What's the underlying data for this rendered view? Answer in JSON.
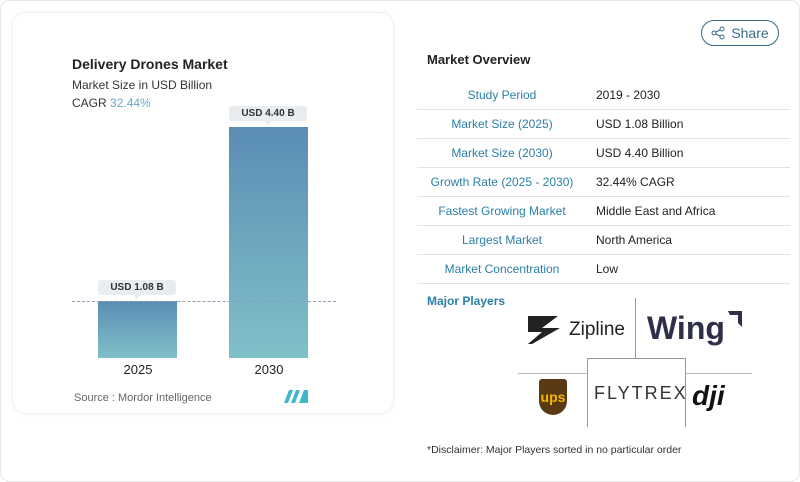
{
  "chart_data": {
    "type": "bar",
    "title": "Delivery Drones Market",
    "subtitle": "Market Size in USD Billion",
    "cagr_label": "CAGR",
    "cagr_value": "32.44%",
    "categories": [
      "2025",
      "2030"
    ],
    "values": [
      1.08,
      4.4
    ],
    "data_labels": [
      "USD 1.08 B",
      "USD 4.40 B"
    ],
    "ylim": [
      0,
      4.4
    ],
    "grid": false,
    "bar_colors": [
      "#5b8db4",
      "#80c0c9"
    ],
    "source": "Source :  Mordor Intelligence"
  },
  "share": {
    "label": "Share",
    "icon": "share-icon"
  },
  "overview": {
    "title": "Market Overview",
    "rows": [
      {
        "k": "Study Period",
        "v": "2019 - 2030"
      },
      {
        "k": "Market Size (2025)",
        "v": "USD 1.08 Billion"
      },
      {
        "k": "Market Size (2030)",
        "v": "USD 4.40 Billion"
      },
      {
        "k": "Growth Rate (2025 - 2030)",
        "v": "32.44% CAGR"
      },
      {
        "k": "Fastest Growing Market",
        "v": "Middle East and Africa"
      },
      {
        "k": "Largest Market",
        "v": "North America"
      },
      {
        "k": "Market Concentration",
        "v": "Low"
      }
    ]
  },
  "players": {
    "title": "Major Players",
    "logos": [
      "Zipline",
      "Wing",
      "UPS",
      "FLYTREX",
      "DJI"
    ]
  },
  "disclaimer": "*Disclaimer: Major Players sorted in no particular order"
}
